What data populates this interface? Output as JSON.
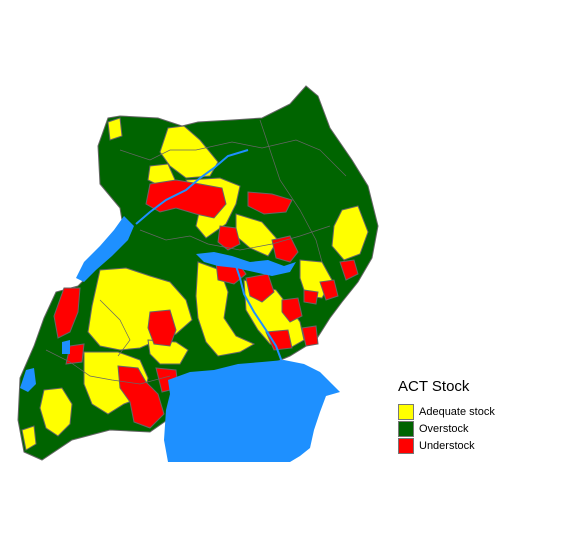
{
  "legend": {
    "title": "ACT Stock",
    "items": [
      {
        "label": "Adequate stock",
        "color": "#ffff00"
      },
      {
        "label": "Overstock",
        "color": "#006400"
      },
      {
        "label": "Understock",
        "color": "#ff0000"
      }
    ]
  },
  "colors": {
    "water": "#1e90ff",
    "border": "#666666"
  }
}
